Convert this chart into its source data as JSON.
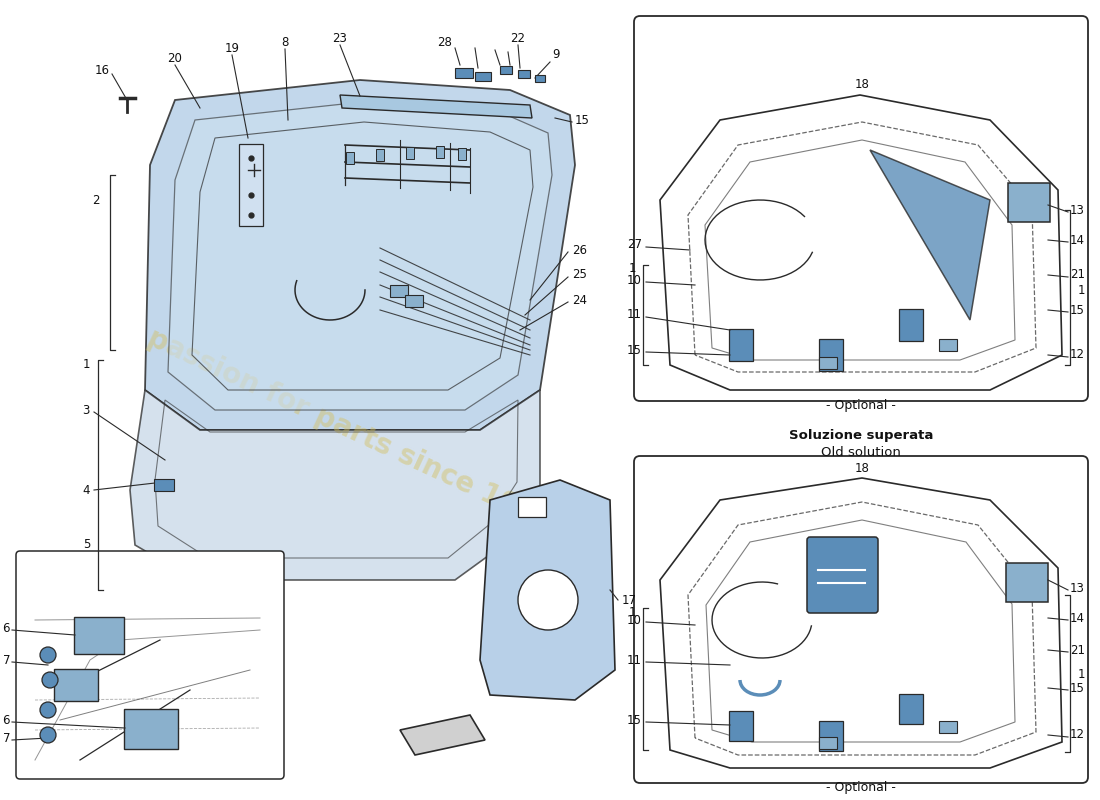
{
  "bg_color": "#ffffff",
  "line_color": "#2a2a2a",
  "blue_fill": "#b8d0e8",
  "blue_fill_mid": "#a0c0dc",
  "blue_fill_dark": "#7aa0c0",
  "blue_part": "#5b8db8",
  "blue_part_light": "#8ab0cc",
  "label_color": "#111111",
  "watermark_color": "#d4c060",
  "optional_label": "- Optional -",
  "old_solution_title1": "Soluzione superata",
  "old_solution_title2": "Old solution"
}
